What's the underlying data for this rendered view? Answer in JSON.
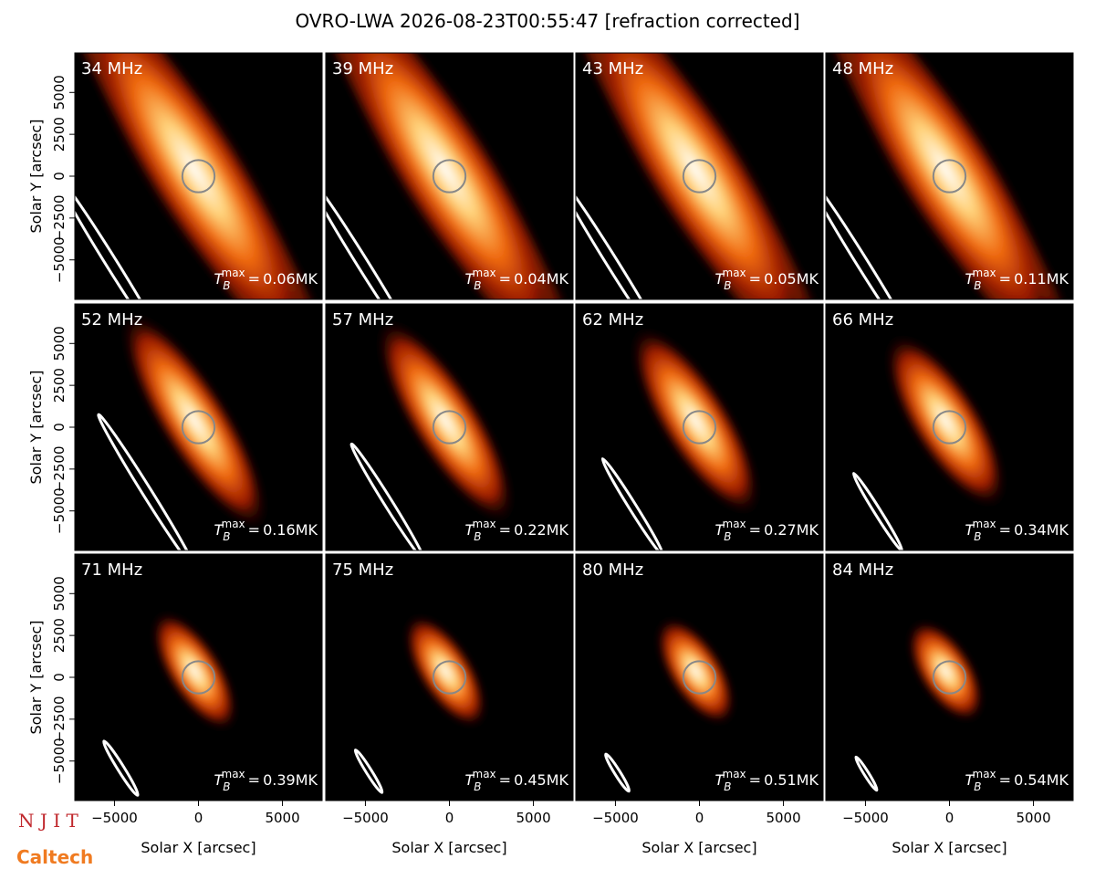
{
  "figure_title": "OVRO-LWA 2026-08-23T00:55:47 [refraction corrected]",
  "logos": [
    "N J I T",
    "Caltech"
  ],
  "tb": {
    "base": "T",
    "sub": "B",
    "sup": "max",
    "eq": "="
  },
  "chart_data": [
    {
      "type": "image",
      "label": "34 MHz",
      "tmax_label": "0.06MK",
      "xlim": [
        -7360,
        7360
      ],
      "ylim": [
        -7360,
        7360
      ],
      "ylabel": "Solar Y [arcsec]",
      "yticks": [
        {
          "value": -5000,
          "label": "−5000"
        },
        {
          "value": -2500,
          "label": "−2500"
        },
        0,
        2500,
        5000
      ]
    },
    {
      "type": "image",
      "label": "39 MHz",
      "tmax_label": "0.04MK",
      "xlim": [
        -7360,
        7360
      ],
      "ylim": [
        -7360,
        7360
      ]
    },
    {
      "type": "image",
      "label": "43 MHz",
      "tmax_label": "0.05MK",
      "xlim": [
        -7360,
        7360
      ],
      "ylim": [
        -7360,
        7360
      ]
    },
    {
      "type": "image",
      "label": "48 MHz",
      "tmax_label": "0.11MK",
      "xlim": [
        -7360,
        7360
      ],
      "ylim": [
        -7360,
        7360
      ]
    },
    {
      "type": "image",
      "label": "52 MHz",
      "tmax_label": "0.16MK",
      "xlim": [
        -7360,
        7360
      ],
      "ylim": [
        -7360,
        7360
      ],
      "ylabel": "Solar Y [arcsec]",
      "yticks": [
        {
          "value": -5000,
          "label": "−5000"
        },
        {
          "value": -2500,
          "label": "−2500"
        },
        0,
        2500,
        5000
      ]
    },
    {
      "type": "image",
      "label": "57 MHz",
      "tmax_label": "0.22MK",
      "xlim": [
        -7360,
        7360
      ],
      "ylim": [
        -7360,
        7360
      ]
    },
    {
      "type": "image",
      "label": "62 MHz",
      "tmax_label": "0.27MK",
      "xlim": [
        -7360,
        7360
      ],
      "ylim": [
        -7360,
        7360
      ]
    },
    {
      "type": "image",
      "label": "66 MHz",
      "tmax_label": "0.34MK",
      "xlim": [
        -7360,
        7360
      ],
      "ylim": [
        -7360,
        7360
      ]
    },
    {
      "type": "image",
      "label": "71 MHz",
      "tmax_label": "0.39MK",
      "xlim": [
        -7360,
        7360
      ],
      "ylim": [
        -7360,
        7360
      ],
      "ylabel": "Solar Y [arcsec]",
      "yticks": [
        {
          "value": -5000,
          "label": "−5000"
        },
        {
          "value": -2500,
          "label": "−2500"
        },
        0,
        2500,
        5000
      ],
      "xlabel": "Solar X [arcsec]",
      "xticks": [
        {
          "value": -5000,
          "label": "−5000"
        },
        0,
        5000
      ]
    },
    {
      "type": "image",
      "label": "75 MHz",
      "tmax_label": "0.45MK",
      "xlim": [
        -7360,
        7360
      ],
      "ylim": [
        -7360,
        7360
      ],
      "xlabel": "Solar X [arcsec]",
      "xticks": [
        {
          "value": -5000,
          "label": "−5000"
        },
        0,
        5000
      ]
    },
    {
      "type": "image",
      "label": "80 MHz",
      "tmax_label": "0.51MK",
      "xlim": [
        -7360,
        7360
      ],
      "ylim": [
        -7360,
        7360
      ],
      "xlabel": "Solar X [arcsec]",
      "xticks": [
        {
          "value": -5000,
          "label": "−5000"
        },
        0,
        5000
      ]
    },
    {
      "type": "image",
      "label": "84 MHz",
      "tmax_label": "0.54MK",
      "xlim": [
        -7360,
        7360
      ],
      "ylim": [
        -7360,
        7360
      ],
      "xlabel": "Solar X [arcsec]",
      "xticks": [
        {
          "value": -5000,
          "label": "−5000"
        },
        0,
        5000
      ]
    }
  ]
}
